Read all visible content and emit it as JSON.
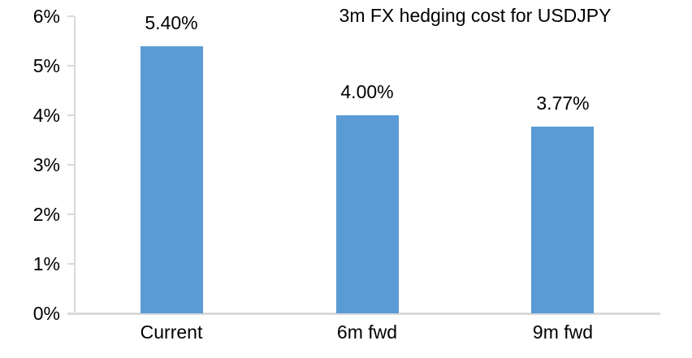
{
  "chart_data": {
    "type": "bar",
    "title": "3m FX hedging cost for USDJPY",
    "categories": [
      "Current",
      "6m fwd",
      "9m fwd"
    ],
    "values": [
      5.4,
      4.0,
      3.77
    ],
    "data_labels": [
      "5.40%",
      "4.00%",
      "3.77%"
    ],
    "ytick_labels": [
      "0%",
      "1%",
      "2%",
      "3%",
      "4%",
      "5%",
      "6%"
    ],
    "ytick_values": [
      0,
      1,
      2,
      3,
      4,
      5,
      6
    ],
    "ylim": [
      0,
      6
    ],
    "xlabel": "",
    "ylabel": "",
    "grid": false,
    "legend": "none",
    "bar_color": "#5b9bd5",
    "axis_color": "#d9d9d9",
    "text_color": "#000000",
    "background_color": "#ffffff"
  }
}
